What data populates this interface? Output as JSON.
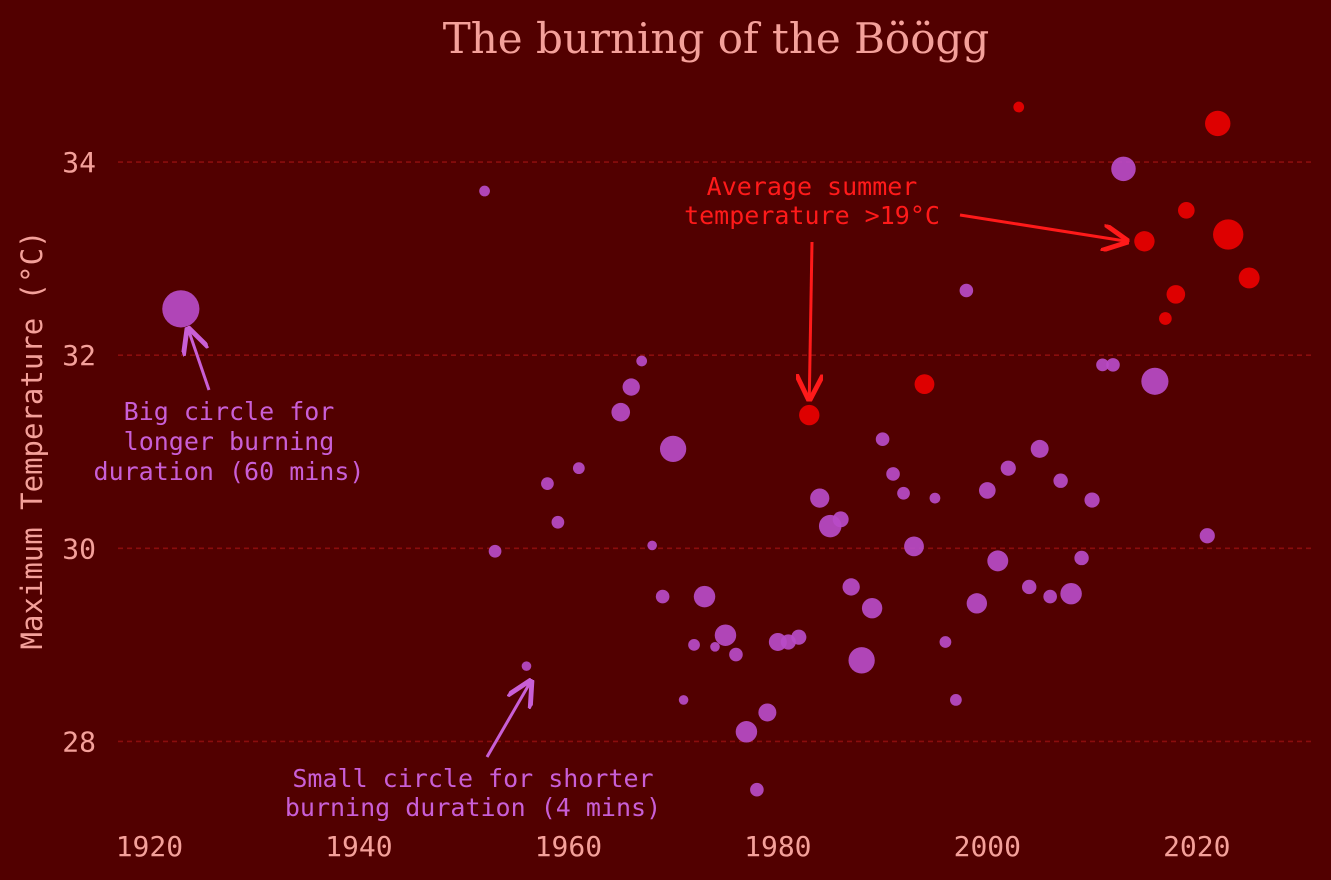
{
  "chart_data": {
    "type": "scatter",
    "title": "The burning of the Böögg",
    "xlabel": "",
    "ylabel": "Maximum Temperature (°C)",
    "xlim": [
      1917,
      2031
    ],
    "ylim": [
      27.0,
      34.85
    ],
    "x_ticks": [
      1920,
      1940,
      1960,
      1980,
      2000,
      2020
    ],
    "y_ticks": [
      28,
      30,
      32,
      34
    ],
    "grid": "horizontal-dashed",
    "size_encodes": "burning duration (minutes)",
    "color_encodes": "average summer temperature > 19°C",
    "colors": {
      "background": "#520000",
      "normal": "#b84bc7",
      "hot": "#e30000",
      "grid": "#8a0d0d",
      "text": "#f4a09a",
      "annotation_red": "#ff1a1a",
      "annotation_purple": "#c95fd6"
    },
    "points": [
      {
        "year": 1923,
        "temp": 32.48,
        "duration": 60,
        "hot": false
      },
      {
        "year": 1952,
        "temp": 33.7,
        "duration": 5,
        "hot": false
      },
      {
        "year": 1953,
        "temp": 29.97,
        "duration": 7,
        "hot": false
      },
      {
        "year": 1956,
        "temp": 28.78,
        "duration": 4,
        "hot": false
      },
      {
        "year": 1958,
        "temp": 30.67,
        "duration": 7,
        "hot": false
      },
      {
        "year": 1959,
        "temp": 30.27,
        "duration": 7,
        "hot": false
      },
      {
        "year": 1961,
        "temp": 30.83,
        "duration": 6,
        "hot": false
      },
      {
        "year": 1965,
        "temp": 31.41,
        "duration": 15,
        "hot": false
      },
      {
        "year": 1966,
        "temp": 31.67,
        "duration": 13,
        "hot": false
      },
      {
        "year": 1967,
        "temp": 31.94,
        "duration": 5,
        "hot": false
      },
      {
        "year": 1968,
        "temp": 30.03,
        "duration": 4,
        "hot": false
      },
      {
        "year": 1969,
        "temp": 29.5,
        "duration": 8,
        "hot": false
      },
      {
        "year": 1970,
        "temp": 31.03,
        "duration": 30,
        "hot": false
      },
      {
        "year": 1971,
        "temp": 28.43,
        "duration": 4,
        "hot": false
      },
      {
        "year": 1972,
        "temp": 29.0,
        "duration": 6,
        "hot": false
      },
      {
        "year": 1973,
        "temp": 29.5,
        "duration": 20,
        "hot": false
      },
      {
        "year": 1974,
        "temp": 28.98,
        "duration": 4,
        "hot": false
      },
      {
        "year": 1975,
        "temp": 29.1,
        "duration": 20,
        "hot": false
      },
      {
        "year": 1976,
        "temp": 28.9,
        "duration": 8,
        "hot": false
      },
      {
        "year": 1977,
        "temp": 28.1,
        "duration": 20,
        "hot": false
      },
      {
        "year": 1978,
        "temp": 27.5,
        "duration": 8,
        "hot": false
      },
      {
        "year": 1979,
        "temp": 28.3,
        "duration": 14,
        "hot": false
      },
      {
        "year": 1980,
        "temp": 29.03,
        "duration": 14,
        "hot": false
      },
      {
        "year": 1981,
        "temp": 29.03,
        "duration": 10,
        "hot": false
      },
      {
        "year": 1982,
        "temp": 29.08,
        "duration": 10,
        "hot": false
      },
      {
        "year": 1983,
        "temp": 31.38,
        "duration": 18,
        "hot": true
      },
      {
        "year": 1984,
        "temp": 30.52,
        "duration": 16,
        "hot": false
      },
      {
        "year": 1985,
        "temp": 30.23,
        "duration": 22,
        "hot": false
      },
      {
        "year": 1986,
        "temp": 30.3,
        "duration": 11,
        "hot": false
      },
      {
        "year": 1987,
        "temp": 29.6,
        "duration": 13,
        "hot": false
      },
      {
        "year": 1988,
        "temp": 28.84,
        "duration": 30,
        "hot": false
      },
      {
        "year": 1989,
        "temp": 29.38,
        "duration": 18,
        "hot": false
      },
      {
        "year": 1990,
        "temp": 31.13,
        "duration": 8,
        "hot": false
      },
      {
        "year": 1991,
        "temp": 30.77,
        "duration": 8,
        "hot": false
      },
      {
        "year": 1992,
        "temp": 30.57,
        "duration": 7,
        "hot": false
      },
      {
        "year": 1993,
        "temp": 30.02,
        "duration": 17,
        "hot": false
      },
      {
        "year": 1994,
        "temp": 31.7,
        "duration": 17,
        "hot": true
      },
      {
        "year": 1995,
        "temp": 30.52,
        "duration": 5,
        "hot": false
      },
      {
        "year": 1996,
        "temp": 29.03,
        "duration": 6,
        "hot": false
      },
      {
        "year": 1997,
        "temp": 28.43,
        "duration": 6,
        "hot": false
      },
      {
        "year": 1998,
        "temp": 32.67,
        "duration": 8,
        "hot": false
      },
      {
        "year": 1999,
        "temp": 29.43,
        "duration": 18,
        "hot": false
      },
      {
        "year": 2000,
        "temp": 30.6,
        "duration": 12,
        "hot": false
      },
      {
        "year": 2001,
        "temp": 29.87,
        "duration": 19,
        "hot": false
      },
      {
        "year": 2002,
        "temp": 30.83,
        "duration": 10,
        "hot": false
      },
      {
        "year": 2003,
        "temp": 34.57,
        "duration": 5,
        "hot": true
      },
      {
        "year": 2004,
        "temp": 29.6,
        "duration": 9,
        "hot": false
      },
      {
        "year": 2005,
        "temp": 31.03,
        "duration": 14,
        "hot": false
      },
      {
        "year": 2006,
        "temp": 29.5,
        "duration": 8,
        "hot": false
      },
      {
        "year": 2007,
        "temp": 30.7,
        "duration": 9,
        "hot": false
      },
      {
        "year": 2008,
        "temp": 29.53,
        "duration": 20,
        "hot": false
      },
      {
        "year": 2009,
        "temp": 29.9,
        "duration": 9,
        "hot": false
      },
      {
        "year": 2010,
        "temp": 30.5,
        "duration": 10,
        "hot": false
      },
      {
        "year": 2011,
        "temp": 31.9,
        "duration": 7,
        "hot": false
      },
      {
        "year": 2012,
        "temp": 31.9,
        "duration": 8,
        "hot": false
      },
      {
        "year": 2013,
        "temp": 33.93,
        "duration": 26,
        "hot": false
      },
      {
        "year": 2015,
        "temp": 33.18,
        "duration": 18,
        "hot": true
      },
      {
        "year": 2016,
        "temp": 31.73,
        "duration": 32,
        "hot": false
      },
      {
        "year": 2017,
        "temp": 32.38,
        "duration": 7,
        "hot": true
      },
      {
        "year": 2018,
        "temp": 32.63,
        "duration": 15,
        "hot": true
      },
      {
        "year": 2019,
        "temp": 33.5,
        "duration": 12,
        "hot": true
      },
      {
        "year": 2021,
        "temp": 30.13,
        "duration": 10,
        "hot": false
      },
      {
        "year": 2022,
        "temp": 34.4,
        "duration": 28,
        "hot": true
      },
      {
        "year": 2023,
        "temp": 33.25,
        "duration": 40,
        "hot": true
      },
      {
        "year": 2025,
        "temp": 32.8,
        "duration": 19,
        "hot": true
      }
    ],
    "annotations": [
      {
        "id": "hot",
        "lines": [
          "Average summer",
          "temperature >19°C"
        ],
        "color": "red",
        "targets": [
          {
            "year": 1983,
            "temp": 31.55
          },
          {
            "year": 2013.3,
            "temp": 33.18
          }
        ]
      },
      {
        "id": "big",
        "lines": [
          "Big circle for",
          "longer burning",
          "duration (60 mins)"
        ],
        "color": "purple",
        "targets": [
          {
            "year": 1923.7,
            "temp": 32.27
          }
        ]
      },
      {
        "id": "small",
        "lines": [
          "Small circle for shorter",
          "burning duration (4 mins)"
        ],
        "color": "purple",
        "targets": [
          {
            "year": 1956.4,
            "temp": 28.62
          }
        ]
      }
    ]
  }
}
